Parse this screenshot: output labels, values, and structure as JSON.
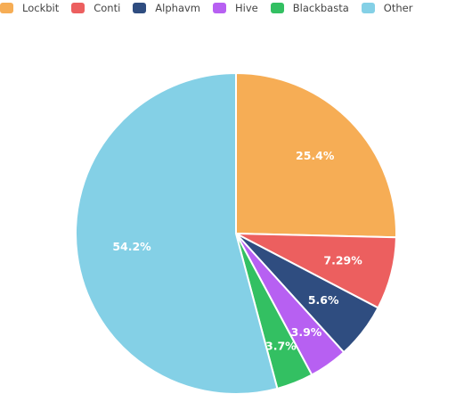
{
  "chart_data": {
    "type": "pie",
    "legend_position": "top-left",
    "slices": [
      {
        "name": "Lockbit",
        "value": 25.4,
        "label": "25.4%",
        "color": "#f6ad55"
      },
      {
        "name": "Conti",
        "value": 7.29,
        "label": "7.29%",
        "color": "#ec5f5f"
      },
      {
        "name": "Alphavm",
        "value": 5.6,
        "label": "5.6%",
        "color": "#2f4d80"
      },
      {
        "name": "Hive",
        "value": 3.9,
        "label": "3.9%",
        "color": "#b760f2"
      },
      {
        "name": "Blackbasta",
        "value": 3.7,
        "label": "3.7%",
        "color": "#33c062"
      },
      {
        "name": "Other",
        "value": 54.2,
        "label": "54.2%",
        "color": "#84d0e6"
      }
    ]
  }
}
